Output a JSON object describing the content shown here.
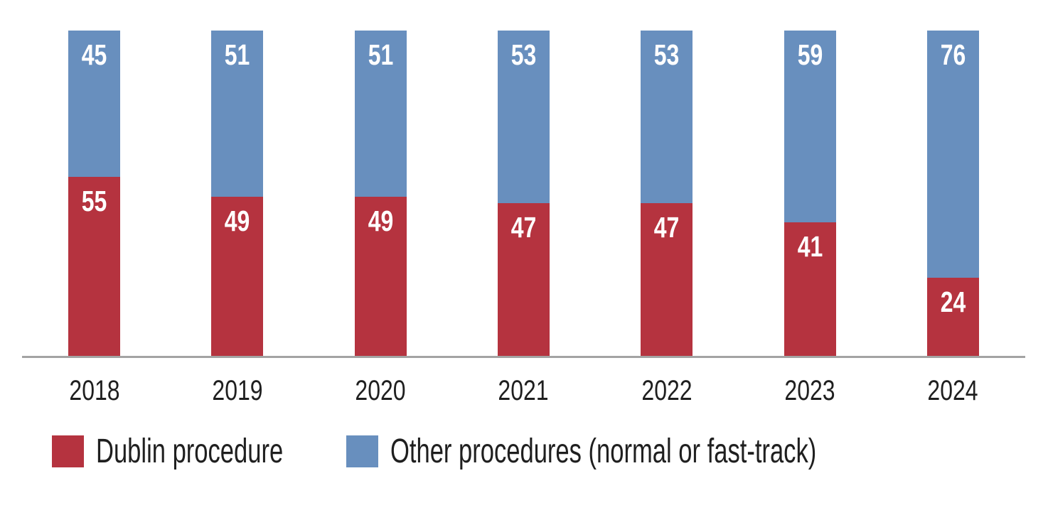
{
  "chart_data": {
    "type": "bar",
    "stacked": true,
    "unit": "percent",
    "categories": [
      "2018",
      "2019",
      "2020",
      "2021",
      "2022",
      "2023",
      "2024"
    ],
    "series": [
      {
        "name": "Dublin procedure",
        "color": "#b5333f",
        "values": [
          55,
          49,
          49,
          47,
          47,
          41,
          24
        ]
      },
      {
        "name": "Other procedures (normal or fast-track)",
        "color": "#688fbe",
        "values": [
          45,
          51,
          51,
          53,
          53,
          59,
          76
        ]
      }
    ],
    "title": "",
    "xlabel": "",
    "ylabel": "",
    "ylim": [
      0,
      100
    ],
    "grid": false,
    "value_labels_shown": true,
    "value_label_color": "#ffffff",
    "axis_line_color": "#a3a3a3",
    "legend_position": "bottom"
  },
  "legend": {
    "items": [
      {
        "label": "Dublin procedure",
        "color": "#b5333f"
      },
      {
        "label": "Other procedures (normal or fast-track)",
        "color": "#688fbe"
      }
    ]
  }
}
